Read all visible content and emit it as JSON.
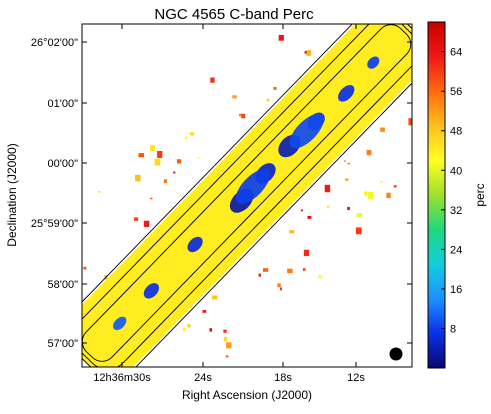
{
  "chart_data": {
    "type": "heatmap",
    "title": "NGC 4565   C-band   Perc",
    "xlabel": "Right Ascension (J2000)",
    "ylabel": "Declination (J2000)",
    "x_ticks": [
      "12h36m30s",
      "24s",
      "18s",
      "12s"
    ],
    "y_ticks": [
      "26°02'00\"",
      "01'00\"",
      "00'00\"",
      "25°59'00\"",
      "58'00\"",
      "57'00\""
    ],
    "colorbar": {
      "label": "perc",
      "range": [
        0,
        70
      ],
      "ticks": [
        "64",
        "56",
        "48",
        "40",
        "32",
        "24",
        "16",
        "8"
      ],
      "tick_values": [
        64,
        56,
        48,
        40,
        32,
        24,
        16,
        8
      ]
    },
    "colormap": [
      "#08086e",
      "#0a30e8",
      "#1e90ff",
      "#12cde0",
      "#1fd87a",
      "#9ee02e",
      "#ffff22",
      "#ffbe1e",
      "#ff6a10",
      "#f01818",
      "#c80000"
    ],
    "map": {
      "galaxy_axis": "diagonal, lower-left to upper-right",
      "central_value": 4,
      "edge_value": 44,
      "contours": 3,
      "beam": "filled black circle, lower-right corner"
    }
  }
}
